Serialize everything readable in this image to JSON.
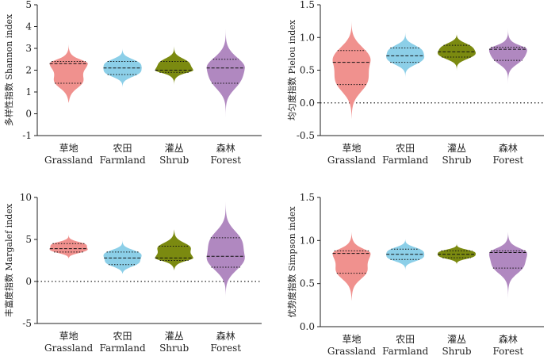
{
  "chart_data": [
    {
      "type": "violin",
      "ylabel": "多样性指数 Shannon index",
      "ylim": [
        -1,
        5
      ],
      "yticks": [
        -1,
        0,
        1,
        2,
        3,
        4,
        5
      ],
      "zero_line": false,
      "categories": [
        {
          "zh": "草地",
          "en": "Grassland",
          "color": "#f0918e",
          "min": 0.5,
          "q1": 1.4,
          "median": 2.3,
          "q3": 2.4,
          "max": 3.2
        },
        {
          "zh": "农田",
          "en": "Farmland",
          "color": "#8ccfe8",
          "min": 1.2,
          "q1": 1.8,
          "median": 2.1,
          "q3": 2.4,
          "max": 3.0
        },
        {
          "zh": "灌丛",
          "en": "Shrub",
          "color": "#7b8a10",
          "min": 1.3,
          "q1": 1.9,
          "median": 2.0,
          "q3": 2.4,
          "max": 3.1
        },
        {
          "zh": "森林",
          "en": "Forest",
          "color": "#b088c0",
          "min": -0.2,
          "q1": 1.4,
          "median": 2.1,
          "q3": 2.5,
          "max": 4.0
        }
      ]
    },
    {
      "type": "violin",
      "ylabel": "均匀度指数 Pielou index",
      "ylim": [
        -0.5,
        1.5
      ],
      "yticks": [
        -0.5,
        0,
        0.5,
        1.0,
        1.5
      ],
      "zero_line": true,
      "categories": [
        {
          "zh": "草地",
          "en": "Grassland",
          "color": "#f0918e",
          "min": -0.25,
          "q1": 0.28,
          "median": 0.62,
          "q3": 0.8,
          "max": 1.25
        },
        {
          "zh": "农田",
          "en": "Farmland",
          "color": "#8ccfe8",
          "min": 0.38,
          "q1": 0.62,
          "median": 0.72,
          "q3": 0.84,
          "max": 1.08
        },
        {
          "zh": "灌丛",
          "en": "Shrub",
          "color": "#7b8a10",
          "min": 0.45,
          "q1": 0.7,
          "median": 0.78,
          "q3": 0.88,
          "max": 1.05
        },
        {
          "zh": "森林",
          "en": "Forest",
          "color": "#b088c0",
          "min": 0.28,
          "q1": 0.65,
          "median": 0.82,
          "q3": 0.85,
          "max": 1.15
        }
      ]
    },
    {
      "type": "violin",
      "ylabel": "丰富度指数 Margalef index",
      "ylim": [
        -5,
        10
      ],
      "yticks": [
        -5,
        0,
        5,
        10
      ],
      "zero_line": true,
      "categories": [
        {
          "zh": "草地",
          "en": "Grassland",
          "color": "#f0918e",
          "min": 2.7,
          "q1": 3.5,
          "median": 3.9,
          "q3": 4.5,
          "max": 5.6
        },
        {
          "zh": "农田",
          "en": "Farmland",
          "color": "#8ccfe8",
          "min": 0.9,
          "q1": 2.0,
          "median": 2.8,
          "q3": 3.5,
          "max": 5.0
        },
        {
          "zh": "灌丛",
          "en": "Shrub",
          "color": "#7b8a10",
          "min": 1.3,
          "q1": 2.5,
          "median": 2.8,
          "q3": 4.2,
          "max": 6.2
        },
        {
          "zh": "森林",
          "en": "Forest",
          "color": "#b088c0",
          "min": -1.8,
          "q1": 1.7,
          "median": 3.0,
          "q3": 5.2,
          "max": 9.5
        }
      ]
    },
    {
      "type": "violin",
      "ylabel": "优势度指数 Simpson index",
      "ylim": [
        0,
        1.5
      ],
      "yticks": [
        0,
        0.5,
        1.0,
        1.5
      ],
      "zero_line": false,
      "categories": [
        {
          "zh": "草地",
          "en": "Grassland",
          "color": "#f0918e",
          "min": 0.3,
          "q1": 0.62,
          "median": 0.85,
          "q3": 0.88,
          "max": 1.1
        },
        {
          "zh": "农田",
          "en": "Farmland",
          "color": "#8ccfe8",
          "min": 0.65,
          "q1": 0.78,
          "median": 0.84,
          "q3": 0.9,
          "max": 1.02
        },
        {
          "zh": "灌丛",
          "en": "Shrub",
          "color": "#7b8a10",
          "min": 0.72,
          "q1": 0.8,
          "median": 0.84,
          "q3": 0.88,
          "max": 0.97
        },
        {
          "zh": "森林",
          "en": "Forest",
          "color": "#b088c0",
          "min": 0.32,
          "q1": 0.68,
          "median": 0.86,
          "q3": 0.88,
          "max": 1.1
        }
      ]
    }
  ]
}
